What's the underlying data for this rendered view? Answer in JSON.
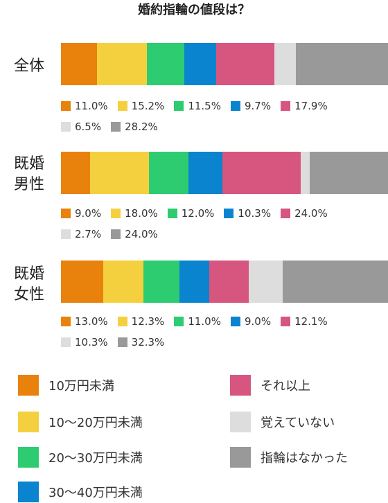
{
  "title": "婚約指輪の値段は？",
  "colors": [
    "#e8820c",
    "#f4d03f",
    "#2ecc71",
    "#0a84ce",
    "#d6567f",
    "#dddddd",
    "#999999"
  ],
  "chart_data": {
    "type": "bar",
    "stacked": true,
    "orientation": "horizontal",
    "unit": "%",
    "categories": [
      "全体",
      "既婚\n男性",
      "既婚\n女性"
    ],
    "series": [
      {
        "name": "10万円未満",
        "values": [
          11.0,
          9.0,
          13.0
        ]
      },
      {
        "name": "10〜20万円未満",
        "values": [
          15.2,
          18.0,
          12.3
        ]
      },
      {
        "name": "20〜30万円未満",
        "values": [
          11.5,
          12.0,
          11.0
        ]
      },
      {
        "name": "30〜40万円未満",
        "values": [
          9.7,
          10.3,
          9.0
        ]
      },
      {
        "name": "それ以上",
        "values": [
          17.9,
          24.0,
          12.1
        ]
      },
      {
        "name": "覚えていない",
        "values": [
          6.5,
          2.7,
          10.3
        ]
      },
      {
        "name": "指輪はなかった",
        "values": [
          28.2,
          24.0,
          32.3
        ]
      }
    ],
    "value_labels": [
      [
        "11.0%",
        "15.2%",
        "11.5%",
        "9.7%",
        "17.9%",
        "6.5%",
        "28.2%"
      ],
      [
        "9.0%",
        "18.0%",
        "12.0%",
        "10.3%",
        "24.0%",
        "2.7%",
        "24.0%"
      ],
      [
        "13.0%",
        "12.3%",
        "11.0%",
        "9.0%",
        "12.1%",
        "10.3%",
        "32.3%"
      ]
    ],
    "legend_placement": "bottom"
  }
}
